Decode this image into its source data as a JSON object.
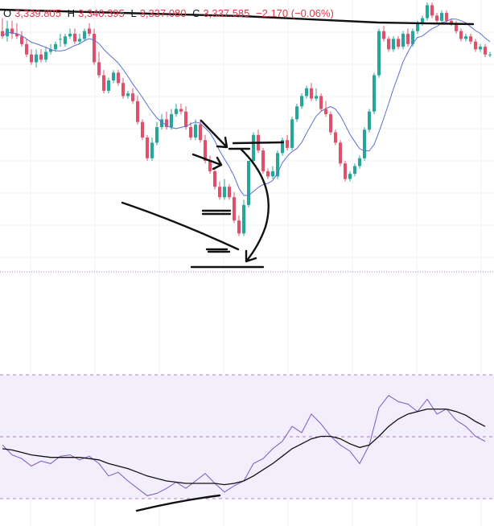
{
  "colors": {
    "up": "#26a69a",
    "down": "#e0506a",
    "ma": "#5b6fd6",
    "rsi": "#7e57c2",
    "rsi_ma": "#111111",
    "rsi_band": "#f3eefb",
    "grid": "#eef0f3",
    "level": "#b07ad6",
    "ink": "#111111"
  },
  "legend": {
    "o_key": "O",
    "o_val": "3,339.805",
    "h_key": "H",
    "h_val": "3,340.395",
    "l_key": "L",
    "l_val": "3,337.080",
    "c_key": "C",
    "c_val": "3,337.585",
    "chg": "−2.170 (−0.06%)"
  },
  "chart_data": [
    {
      "type": "candlestick",
      "x_index": [
        0,
        1,
        2,
        3,
        4,
        5,
        6,
        7,
        8,
        9,
        10,
        11,
        12,
        13,
        14,
        15,
        16,
        17,
        18,
        19,
        20,
        21,
        22,
        23,
        24,
        25,
        26,
        27,
        28,
        29,
        30,
        31,
        32,
        33,
        34,
        35,
        36,
        37,
        38,
        39,
        40,
        41,
        42,
        43,
        44,
        45,
        46,
        47,
        48,
        49,
        50,
        51,
        52,
        53,
        54,
        55,
        56,
        57,
        58,
        59,
        60,
        61,
        62,
        63,
        64,
        65,
        66,
        67,
        68,
        69,
        70,
        71,
        72,
        73,
        74,
        75,
        76,
        77,
        78,
        79,
        80,
        81,
        82,
        83,
        84,
        85,
        86,
        87,
        88,
        89,
        90,
        91,
        92,
        93,
        94,
        95,
        96,
        97,
        98,
        99,
        100,
        101
      ],
      "open": [
        3339.4,
        3339.0,
        3339.6,
        3339.2,
        3339.0,
        3338.4,
        3337.6,
        3337.0,
        3337.6,
        3337.2,
        3337.8,
        3338.0,
        3338.8,
        3338.4,
        3339.0,
        3339.2,
        3338.6,
        3338.8,
        3339.6,
        3339.2,
        3337.0,
        3336.0,
        3334.8,
        3335.6,
        3336.2,
        3335.4,
        3334.4,
        3334.6,
        3334.0,
        3332.4,
        3331.2,
        3329.6,
        3330.8,
        3332.0,
        3332.6,
        3332.0,
        3333.0,
        3333.4,
        3333.2,
        3332.0,
        3331.2,
        3332.2,
        3331.0,
        3329.4,
        3328.6,
        3327.4,
        3326.6,
        3327.4,
        3326.6,
        3324.8,
        3323.8,
        3326.0,
        3329.4,
        3331.4,
        3330.2,
        3328.6,
        3328.2,
        3328.2,
        3330.0,
        3331.0,
        3330.4,
        3332.6,
        3333.6,
        3334.4,
        3335.0,
        3334.2,
        3334.4,
        3333.4,
        3333.0,
        3331.6,
        3330.8,
        3329.2,
        3328.0,
        3328.4,
        3329.0,
        3329.6,
        3331.8,
        3333.2,
        3336.0,
        3339.4,
        3338.8,
        3338.0,
        3338.8,
        3338.2,
        3339.2,
        3338.4,
        3339.4,
        3340.0,
        3340.4,
        3341.4,
        3340.6,
        3340.2,
        3340.8,
        3340.2,
        3340.0,
        3339.4,
        3338.8,
        3339.0,
        3338.6,
        3338.0,
        3338.2,
        3337.6
      ],
      "high": [
        3340.4,
        3340.2,
        3340.2,
        3340.0,
        3339.4,
        3338.8,
        3338.0,
        3338.0,
        3338.0,
        3338.2,
        3338.4,
        3338.6,
        3339.2,
        3339.2,
        3339.6,
        3339.6,
        3339.2,
        3339.6,
        3340.0,
        3339.6,
        3337.8,
        3336.4,
        3335.8,
        3336.4,
        3336.4,
        3335.8,
        3334.8,
        3335.0,
        3334.4,
        3332.6,
        3331.4,
        3331.2,
        3332.4,
        3333.0,
        3333.2,
        3333.4,
        3333.8,
        3333.8,
        3333.6,
        3332.4,
        3332.6,
        3332.6,
        3331.4,
        3329.8,
        3328.8,
        3327.8,
        3328.0,
        3327.6,
        3327.0,
        3325.2,
        3326.4,
        3329.4,
        3331.6,
        3331.8,
        3330.4,
        3328.8,
        3329.0,
        3330.2,
        3331.2,
        3331.4,
        3332.8,
        3333.8,
        3334.6,
        3335.2,
        3335.4,
        3335.0,
        3334.6,
        3334.0,
        3333.2,
        3331.8,
        3331.0,
        3329.4,
        3328.6,
        3329.2,
        3329.8,
        3332.0,
        3333.4,
        3336.2,
        3339.6,
        3339.8,
        3339.0,
        3339.0,
        3339.0,
        3339.4,
        3339.6,
        3339.6,
        3340.2,
        3340.6,
        3341.6,
        3341.6,
        3340.8,
        3341.0,
        3341.0,
        3340.4,
        3340.2,
        3339.6,
        3339.2,
        3339.2,
        3338.8,
        3338.4,
        3338.4,
        3337.8
      ],
      "low": [
        3338.8,
        3338.6,
        3338.8,
        3338.8,
        3338.2,
        3337.4,
        3336.8,
        3336.6,
        3337.0,
        3337.0,
        3337.6,
        3337.8,
        3338.2,
        3338.2,
        3338.8,
        3338.4,
        3338.4,
        3338.6,
        3339.0,
        3336.8,
        3335.8,
        3334.6,
        3334.6,
        3335.4,
        3335.2,
        3334.2,
        3334.2,
        3333.8,
        3332.2,
        3331.0,
        3329.4,
        3329.4,
        3330.6,
        3331.8,
        3331.8,
        3331.8,
        3332.8,
        3333.0,
        3331.8,
        3331.0,
        3331.0,
        3330.8,
        3329.2,
        3328.4,
        3327.2,
        3326.4,
        3326.4,
        3326.4,
        3324.6,
        3323.6,
        3323.6,
        3325.8,
        3329.2,
        3330.0,
        3328.4,
        3328.0,
        3328.0,
        3328.0,
        3329.8,
        3330.2,
        3330.2,
        3332.4,
        3333.4,
        3334.2,
        3334.0,
        3334.0,
        3333.2,
        3332.8,
        3331.4,
        3330.6,
        3329.0,
        3327.8,
        3327.8,
        3328.2,
        3328.8,
        3329.4,
        3331.6,
        3333.0,
        3335.8,
        3338.6,
        3337.8,
        3337.8,
        3338.0,
        3338.0,
        3338.2,
        3338.2,
        3339.2,
        3339.8,
        3340.2,
        3340.4,
        3340.0,
        3340.0,
        3340.0,
        3339.8,
        3339.2,
        3338.6,
        3338.6,
        3338.4,
        3337.8,
        3337.8,
        3337.4,
        3337.4
      ],
      "close": [
        3339.0,
        3339.6,
        3339.2,
        3339.0,
        3338.4,
        3337.6,
        3337.0,
        3337.6,
        3337.2,
        3337.8,
        3338.0,
        3338.4,
        3338.8,
        3339.0,
        3339.2,
        3338.6,
        3338.8,
        3339.4,
        3339.2,
        3337.0,
        3336.0,
        3334.8,
        3335.6,
        3336.2,
        3335.4,
        3334.4,
        3334.6,
        3334.0,
        3332.4,
        3331.2,
        3329.6,
        3330.8,
        3332.0,
        3332.6,
        3332.0,
        3333.0,
        3333.4,
        3333.2,
        3332.0,
        3331.2,
        3332.2,
        3331.0,
        3329.4,
        3328.6,
        3327.4,
        3326.6,
        3327.4,
        3326.6,
        3324.8,
        3323.8,
        3326.0,
        3329.4,
        3331.4,
        3330.2,
        3328.6,
        3328.2,
        3328.6,
        3330.0,
        3331.0,
        3330.4,
        3332.6,
        3333.6,
        3334.4,
        3335.0,
        3334.2,
        3334.4,
        3333.4,
        3333.0,
        3331.6,
        3330.8,
        3329.2,
        3328.0,
        3328.4,
        3329.0,
        3329.6,
        3331.8,
        3333.2,
        3336.0,
        3339.4,
        3338.8,
        3338.0,
        3338.8,
        3338.2,
        3339.2,
        3338.4,
        3339.4,
        3340.0,
        3340.4,
        3341.4,
        3340.6,
        3340.2,
        3340.8,
        3340.2,
        3340.0,
        3339.4,
        3338.8,
        3339.0,
        3338.6,
        3338.0,
        3338.2,
        3337.6,
        3337.6
      ],
      "ma_period": 9,
      "grid": true,
      "legend": "top-left"
    },
    {
      "type": "line",
      "name": "",
      "x_index": [
        0,
        2,
        4,
        6,
        8,
        10,
        12,
        14,
        16,
        18,
        20,
        22,
        24,
        26,
        28,
        30,
        32,
        34,
        36,
        38,
        40,
        42,
        44,
        46,
        48,
        50,
        52,
        54,
        56,
        58,
        60,
        62,
        64,
        66,
        68,
        70,
        72,
        74,
        76,
        78,
        80,
        82,
        84,
        86,
        88,
        90,
        92,
        94,
        96,
        98,
        100
      ],
      "rsi": [
        55,
        47,
        44,
        38,
        42,
        40,
        46,
        47,
        43,
        46,
        40,
        30,
        33,
        26,
        20,
        14,
        16,
        20,
        25,
        20,
        26,
        32,
        24,
        17,
        22,
        26,
        40,
        44,
        52,
        58,
        70,
        65,
        80,
        72,
        62,
        55,
        50,
        40,
        55,
        85,
        95,
        90,
        88,
        82,
        92,
        80,
        84,
        75,
        70,
        62,
        58
      ],
      "rsi_ma": [
        52,
        51,
        49,
        47,
        46,
        45,
        45,
        45,
        45,
        44,
        43,
        40,
        38,
        36,
        33,
        30,
        28,
        26,
        25,
        24,
        24,
        24,
        24,
        23,
        24,
        26,
        30,
        35,
        40,
        46,
        52,
        56,
        60,
        62,
        62,
        60,
        56,
        53,
        55,
        62,
        70,
        76,
        80,
        82,
        84,
        84,
        84,
        82,
        79,
        74,
        70
      ],
      "ylim": [
        0,
        100
      ],
      "levels": [
        30,
        70
      ],
      "grid": true
    }
  ]
}
